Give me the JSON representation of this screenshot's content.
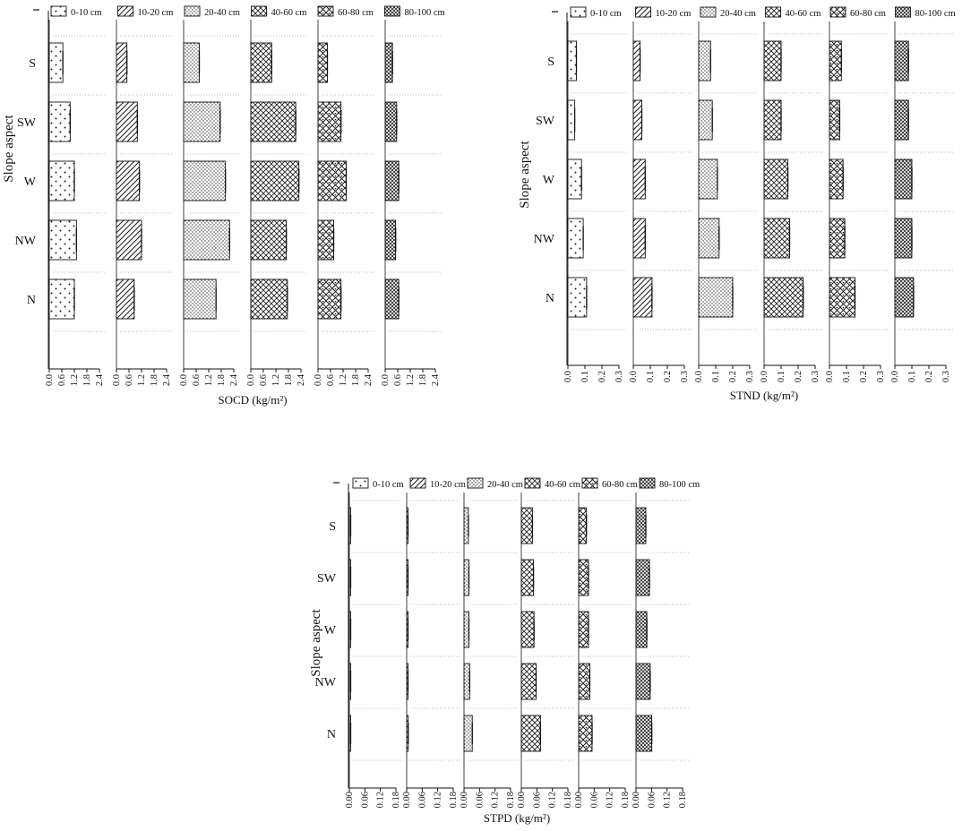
{
  "chart_data": [
    {
      "type": "bar",
      "orientation": "horizontal",
      "layout": "panels-by-depth",
      "xlabel": "SOCD (kg/m²)",
      "ylabel": "Slope aspect",
      "categories": [
        "S",
        "SW",
        "W",
        "NW",
        "N"
      ],
      "panel_ticks": [
        "0.0",
        "0.6",
        "1.2",
        "1.8",
        "2.4"
      ],
      "xlim": [
        0,
        2.4
      ],
      "series": [
        {
          "name": "0-10 cm",
          "pattern": "dots-sparse",
          "values": [
            0.65,
            1.0,
            1.2,
            1.3,
            1.2
          ]
        },
        {
          "name": "10-20 cm",
          "pattern": "diag",
          "values": [
            0.5,
            1.0,
            1.1,
            1.2,
            0.85
          ]
        },
        {
          "name": "20-40 cm",
          "pattern": "dots-dense",
          "values": [
            0.75,
            1.75,
            2.0,
            2.2,
            1.55
          ]
        },
        {
          "name": "40-60 cm",
          "pattern": "cross",
          "values": [
            1.0,
            2.15,
            2.3,
            1.7,
            1.75
          ]
        },
        {
          "name": "60-80 cm",
          "pattern": "cross-dots",
          "values": [
            0.45,
            1.1,
            1.35,
            0.75,
            1.1
          ]
        },
        {
          "name": "80-100 cm",
          "pattern": "cross-fine",
          "values": [
            0.35,
            0.55,
            0.65,
            0.5,
            0.65
          ]
        }
      ]
    },
    {
      "type": "bar",
      "orientation": "horizontal",
      "layout": "panels-by-depth",
      "xlabel": "STND (kg/m²)",
      "ylabel": "Slope aspect",
      "categories": [
        "S",
        "SW",
        "W",
        "NW",
        "N"
      ],
      "panel_ticks": [
        "0.0",
        "0.1",
        "0.2",
        "0.3"
      ],
      "xlim": [
        0,
        0.3
      ],
      "series": [
        {
          "name": "0-10 cm",
          "pattern": "dots-sparse",
          "values": [
            0.05,
            0.04,
            0.08,
            0.09,
            0.11
          ]
        },
        {
          "name": "10-20 cm",
          "pattern": "diag",
          "values": [
            0.04,
            0.05,
            0.07,
            0.07,
            0.11
          ]
        },
        {
          "name": "20-40 cm",
          "pattern": "dots-dense",
          "values": [
            0.07,
            0.08,
            0.11,
            0.12,
            0.2
          ]
        },
        {
          "name": "40-60 cm",
          "pattern": "cross",
          "values": [
            0.1,
            0.1,
            0.14,
            0.15,
            0.23
          ]
        },
        {
          "name": "60-80 cm",
          "pattern": "cross-dots",
          "values": [
            0.07,
            0.06,
            0.08,
            0.09,
            0.15
          ]
        },
        {
          "name": "80-100 cm",
          "pattern": "cross-fine",
          "values": [
            0.08,
            0.08,
            0.1,
            0.1,
            0.11
          ]
        }
      ]
    },
    {
      "type": "bar",
      "orientation": "horizontal",
      "layout": "panels-by-depth",
      "xlabel": "STPD (kg/m²)",
      "ylabel": "Slope aspect",
      "categories": [
        "S",
        "SW",
        "W",
        "NW",
        "N"
      ],
      "panel_ticks": [
        "0.00",
        "0.06",
        "0.12",
        "0.18"
      ],
      "xlim": [
        0,
        0.18
      ],
      "series": [
        {
          "name": "0-10 cm",
          "pattern": "dots-sparse",
          "values": [
            0.003,
            0.003,
            0.003,
            0.003,
            0.003
          ]
        },
        {
          "name": "10-20 cm",
          "pattern": "diag",
          "values": [
            0.005,
            0.005,
            0.005,
            0.005,
            0.006
          ]
        },
        {
          "name": "20-40 cm",
          "pattern": "dots-dense",
          "values": [
            0.017,
            0.019,
            0.019,
            0.022,
            0.032
          ]
        },
        {
          "name": "40-60 cm",
          "pattern": "cross",
          "values": [
            0.043,
            0.047,
            0.049,
            0.057,
            0.074
          ]
        },
        {
          "name": "60-80 cm",
          "pattern": "cross-dots",
          "values": [
            0.03,
            0.038,
            0.038,
            0.043,
            0.052
          ]
        },
        {
          "name": "80-100 cm",
          "pattern": "cross-fine",
          "values": [
            0.038,
            0.052,
            0.042,
            0.055,
            0.061
          ]
        }
      ]
    }
  ]
}
